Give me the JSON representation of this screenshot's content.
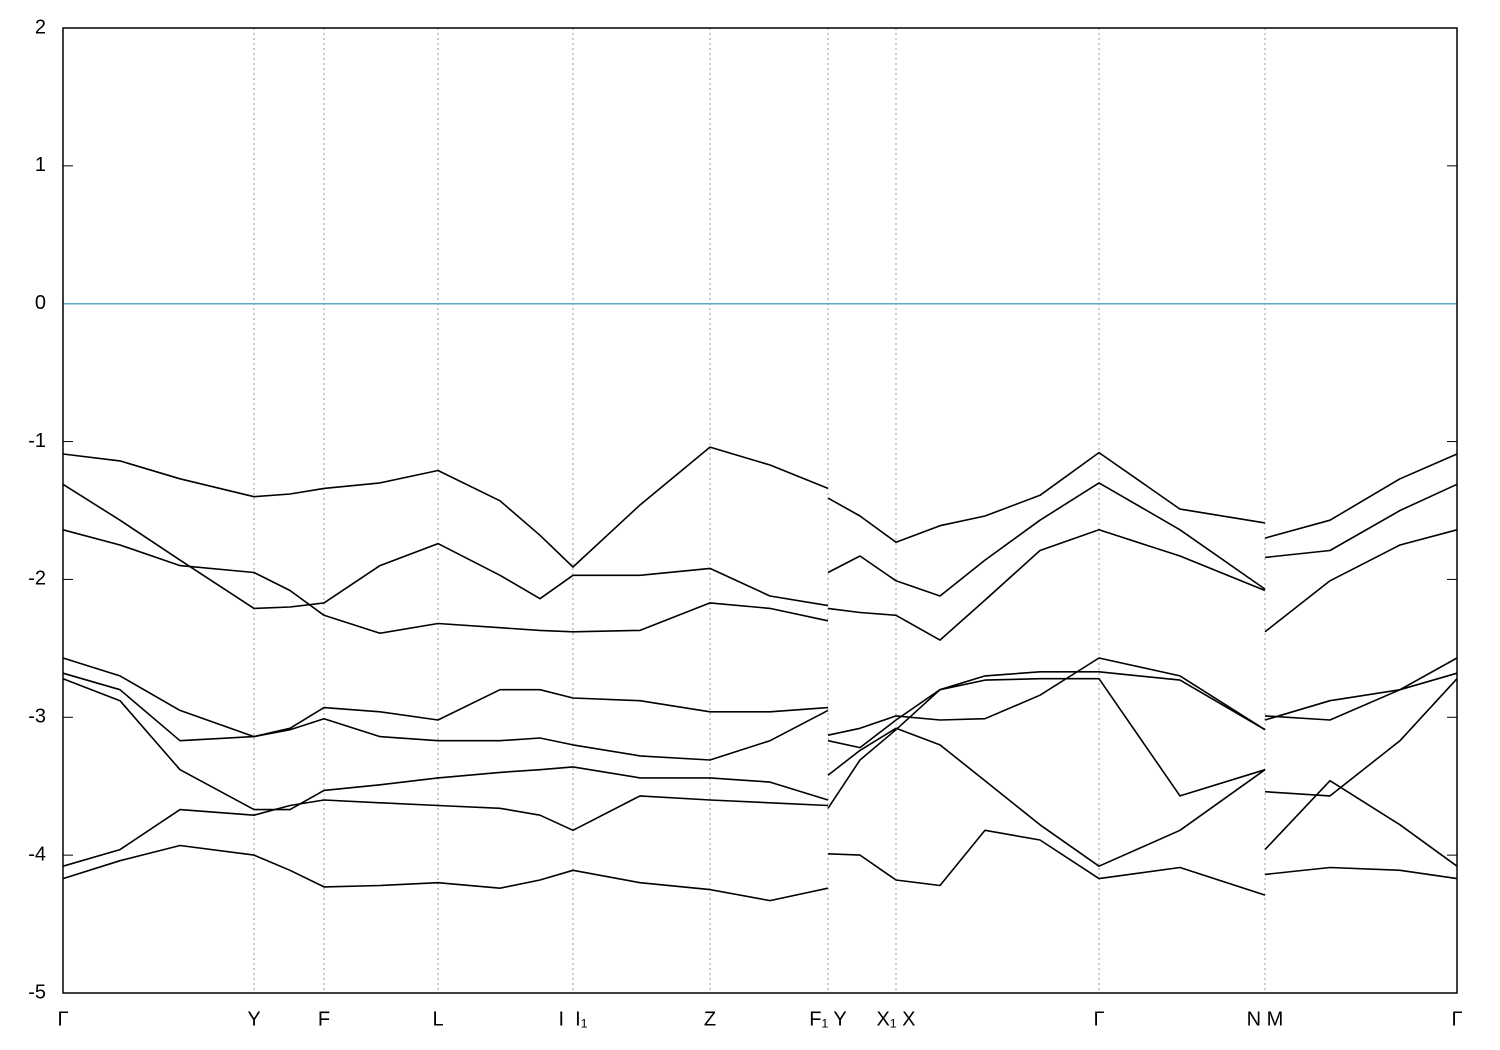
{
  "chart_data": {
    "type": "line",
    "x": [
      0,
      0.57,
      1.17,
      1.91,
      2.27,
      2.61,
      3.17,
      3.75,
      4.37,
      4.77,
      5.1,
      5.77,
      6.47,
      7.07,
      7.65,
      7.65,
      7.65,
      7.97,
      8.33,
      8.77,
      9.22,
      9.77,
      10.36,
      11.17,
      12.02,
      12.02,
      12.02,
      12.67,
      13.37,
      13.94
    ],
    "series": [
      {
        "color": "#000000",
        "values": [
          -1.09,
          -1.14,
          -1.27,
          -1.4,
          -1.38,
          -1.34,
          -1.3,
          -1.21,
          -1.43,
          -1.68,
          -1.91,
          -1.46,
          -1.04,
          -1.17,
          -1.34,
          null,
          -1.41,
          -1.54,
          -1.73,
          -1.61,
          -1.54,
          -1.39,
          -1.08,
          -1.49,
          -1.59,
          null,
          -1.7,
          -1.57,
          -1.27,
          -1.09
        ]
      },
      {
        "color": "#000000",
        "values": [
          -1.31,
          -1.57,
          -1.86,
          -2.21,
          -2.2,
          -2.17,
          -1.9,
          -1.74,
          -1.97,
          -2.14,
          -1.97,
          -1.97,
          -1.92,
          -2.12,
          -2.19,
          null,
          -1.95,
          -1.83,
          -2.01,
          -2.12,
          -1.86,
          -1.57,
          -1.3,
          -1.64,
          -2.07,
          null,
          -1.84,
          -1.79,
          -1.5,
          -1.31
        ]
      },
      {
        "color": "#000000",
        "values": [
          -1.64,
          -1.75,
          -1.9,
          -1.95,
          -2.08,
          -2.26,
          -2.39,
          -2.32,
          -2.35,
          -2.37,
          -2.38,
          -2.37,
          -2.17,
          -2.21,
          -2.3,
          null,
          -2.21,
          -2.24,
          -2.26,
          -2.44,
          -2.15,
          -1.79,
          -1.64,
          -1.83,
          -2.08,
          null,
          -2.38,
          -2.01,
          -1.75,
          -1.64
        ]
      },
      {
        "color": "#000000",
        "values": [
          -2.57,
          -2.7,
          -2.95,
          -3.14,
          -3.08,
          -2.93,
          -2.96,
          -3.02,
          -2.8,
          -2.8,
          -2.86,
          -2.88,
          -2.96,
          -2.96,
          -2.93,
          null,
          -3.13,
          -3.08,
          -2.99,
          -3.02,
          -3.01,
          -2.84,
          -2.57,
          -2.7,
          -3.09,
          null,
          -2.99,
          -3.02,
          -2.8,
          -2.57
        ]
      },
      {
        "color": "#000000",
        "values": [
          -2.68,
          -2.8,
          -3.17,
          -3.14,
          -3.09,
          -3.01,
          -3.14,
          -3.17,
          -3.17,
          -3.15,
          -3.2,
          -3.28,
          -3.31,
          -3.17,
          -2.95,
          null,
          -3.17,
          -3.22,
          -3.02,
          -2.8,
          -2.7,
          -2.67,
          -2.67,
          -2.73,
          -3.09,
          null,
          -3.02,
          -2.88,
          -2.8,
          -2.68
        ]
      },
      {
        "color": "#000000",
        "values": [
          -2.72,
          -2.88,
          -3.38,
          -3.67,
          -3.67,
          -3.53,
          -3.49,
          -3.44,
          -3.4,
          -3.38,
          -3.36,
          -3.44,
          -3.44,
          -3.47,
          -3.6,
          null,
          -3.66,
          -3.31,
          -3.09,
          -2.8,
          -2.73,
          -2.72,
          -2.72,
          -3.57,
          -3.38,
          null,
          -3.54,
          -3.57,
          -3.17,
          -2.72
        ]
      },
      {
        "color": "#000000",
        "values": [
          -4.08,
          -3.96,
          -3.67,
          -3.71,
          -3.64,
          -3.6,
          -3.62,
          -3.64,
          -3.66,
          -3.71,
          -3.82,
          -3.57,
          -3.6,
          -3.62,
          -3.64,
          null,
          -3.42,
          -3.24,
          -3.08,
          -3.2,
          -3.46,
          -3.78,
          -4.08,
          -3.82,
          -3.38,
          null,
          -3.96,
          -3.46,
          -3.78,
          -4.08
        ]
      },
      {
        "color": "#000000",
        "values": [
          -4.17,
          -4.04,
          -3.93,
          -4.0,
          -4.11,
          -4.23,
          -4.22,
          -4.2,
          -4.24,
          -4.18,
          -4.11,
          -4.2,
          -4.25,
          -4.33,
          -4.24,
          null,
          -3.99,
          -4.0,
          -4.18,
          -4.22,
          -3.82,
          -3.89,
          -4.17,
          -4.09,
          -4.29,
          null,
          -4.14,
          -4.09,
          -4.11,
          -4.17
        ]
      }
    ],
    "xlim": [
      0,
      13.94
    ],
    "xticks": [
      {
        "value": 0,
        "label": "Γ"
      },
      {
        "value": 1.91,
        "label": "Y"
      },
      {
        "value": 2.61,
        "label": "F"
      },
      {
        "value": 3.75,
        "label": "L"
      },
      {
        "value": 5.1,
        "label": "I  I₁"
      },
      {
        "value": 6.47,
        "label": "Z"
      },
      {
        "value": 7.65,
        "label": "F₁ Y"
      },
      {
        "value": 8.33,
        "label": "X₁ X"
      },
      {
        "value": 10.36,
        "label": "Γ"
      },
      {
        "value": 12.02,
        "label": "N M"
      },
      {
        "value": 13.94,
        "label": "Γ"
      }
    ],
    "ylim": [
      -5,
      2
    ],
    "yticks": [
      -5,
      -4,
      -3,
      -2,
      -1,
      0,
      1,
      2
    ],
    "xgrid": true,
    "hlines": [
      {
        "value": 0,
        "color": "#5aaec8"
      }
    ]
  }
}
